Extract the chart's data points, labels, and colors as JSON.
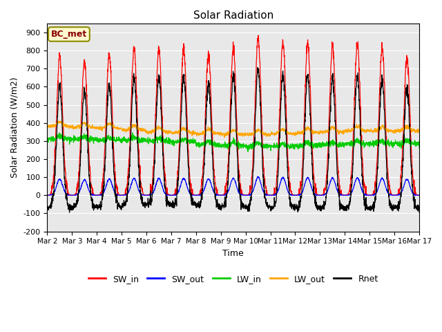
{
  "title": "Solar Radiation",
  "xlabel": "Time",
  "ylabel": "Solar Radiation (W/m2)",
  "ylim": [
    -200,
    950
  ],
  "yticks": [
    -200,
    -100,
    0,
    100,
    200,
    300,
    400,
    500,
    600,
    700,
    800,
    900
  ],
  "date_labels": [
    "Mar 2",
    "Mar 3",
    "Mar 4",
    "Mar 5",
    "Mar 6",
    "Mar 7",
    "Mar 8",
    "Mar 9",
    "Mar 10",
    "Mar 11",
    "Mar 12",
    "Mar 13",
    "Mar 14",
    "Mar 15",
    "Mar 16",
    "Mar 17"
  ],
  "annotation": "BC_met",
  "annotation_color": "#8B0000",
  "annotation_bg": "#FFFACD",
  "series_colors": {
    "SW_in": "#FF0000",
    "SW_out": "#0000FF",
    "LW_in": "#00CC00",
    "LW_out": "#FFA500",
    "Rnet": "#000000"
  },
  "bg_color": "#E8E8E8",
  "n_days": 15,
  "points_per_day": 144,
  "SW_in_peaks": [
    770,
    740,
    780,
    810,
    810,
    810,
    780,
    810,
    870,
    850,
    840,
    830,
    830,
    820,
    760
  ],
  "LW_in_base": [
    310,
    310,
    305,
    305,
    300,
    295,
    280,
    275,
    270,
    270,
    275,
    280,
    285,
    285,
    285
  ],
  "LW_out_base": [
    380,
    375,
    370,
    360,
    350,
    345,
    340,
    335,
    335,
    340,
    345,
    350,
    355,
    355,
    355
  ]
}
